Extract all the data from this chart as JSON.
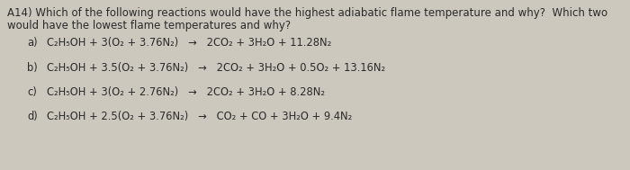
{
  "bg_color": "#cdc8be",
  "text_color": "#2a2a2a",
  "title_line1": "A14) Which of the following reactions would have the highest adiabatic flame temperature and why?  Which two",
  "title_line2": "would have the lowest flame temperatures and why?",
  "reactions": [
    {
      "label": "a)",
      "eq": "C₂H₅OH + 3(O₂ + 3.76N₂)   →   2CO₂ + 3H₂O + 11.28N₂"
    },
    {
      "label": "b)",
      "eq": "C₂H₅OH + 3.5(O₂ + 3.76N₂)   →   2CO₂ + 3H₂O + 0.5O₂ + 13.16N₂"
    },
    {
      "label": "c)",
      "eq": "C₂H₅OH + 3(O₂ + 2.76N₂)   →   2CO₂ + 3H₂O + 8.28N₂"
    },
    {
      "label": "d)",
      "eq": "C₂H₅OH + 2.5(O₂ + 3.76N₂)   →   CO₂ + CO + 3H₂O + 9.4N₂"
    }
  ],
  "title_fontsize": 8.5,
  "reaction_fontsize": 8.3,
  "fig_width": 7.0,
  "fig_height": 1.89,
  "dpi": 100
}
